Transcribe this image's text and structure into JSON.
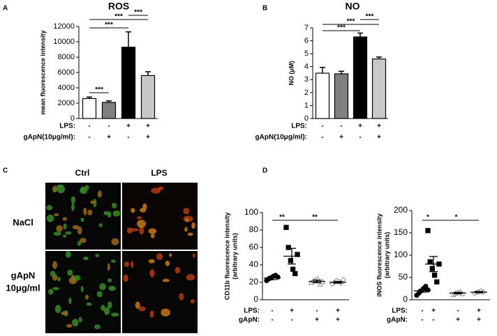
{
  "panel_labels": [
    "A",
    "B",
    "C",
    "D"
  ],
  "chart_data": [
    {
      "type": "bar",
      "title": "ROS",
      "y_label": "mean fluorescence intensity",
      "values": [
        2600,
        2100,
        9300,
        5600
      ],
      "errors": [
        200,
        200,
        2000,
        500
      ],
      "colors": [
        "#ffffff",
        "#808080",
        "#000000",
        "#c8c8c8"
      ],
      "ylim": [
        0,
        12000
      ],
      "yticks": [
        0,
        2000,
        4000,
        6000,
        8000,
        10000,
        12000
      ],
      "significance": [
        "***",
        "***",
        "***",
        "***"
      ],
      "condition_rows": [
        {
          "label": "LPS:",
          "values": [
            "-",
            "-",
            "+",
            "+"
          ]
        },
        {
          "label": "gApN(10μg/ml):",
          "values": [
            "-",
            "+",
            "-",
            "+"
          ]
        }
      ]
    },
    {
      "type": "bar",
      "title": "NO",
      "y_label": "NO (μM)",
      "values": [
        3.5,
        3.45,
        6.3,
        4.6
      ],
      "errors": [
        0.45,
        0.2,
        0.3,
        0.15
      ],
      "colors": [
        "#ffffff",
        "#808080",
        "#000000",
        "#c8c8c8"
      ],
      "ylim": [
        0,
        7
      ],
      "yticks": [
        0,
        1,
        2,
        3,
        4,
        5,
        6,
        7
      ],
      "significance": [
        "***",
        "***",
        "***"
      ],
      "condition_rows": [
        {
          "label": "LPS:",
          "values": [
            "-",
            "-",
            "+",
            "+"
          ]
        },
        {
          "label": "gApN(10μg/ml):",
          "values": [
            "-",
            "+",
            "-",
            "+"
          ]
        }
      ]
    },
    {
      "type": "scatter",
      "y_label": [
        "CD11b fluorescence intensity",
        "(arbitrary units)"
      ],
      "ylim": [
        0,
        100
      ],
      "yticks": [
        0,
        20,
        40,
        60,
        80,
        100
      ],
      "groups": [
        {
          "marker": "circle",
          "filled": true,
          "values": [
            22,
            24,
            25,
            27,
            28,
            26
          ],
          "mean": 25,
          "sem": 2
        },
        {
          "marker": "square",
          "filled": true,
          "values": [
            83,
            60,
            45,
            35,
            30,
            52
          ],
          "mean": 50,
          "sem": 9
        },
        {
          "marker": "triangle",
          "filled": false,
          "values": [
            20,
            22,
            23,
            24,
            18,
            21
          ],
          "mean": 21,
          "sem": 1.5
        },
        {
          "marker": "diamond",
          "filled": false,
          "values": [
            18,
            20,
            22,
            21,
            19,
            23
          ],
          "mean": 20,
          "sem": 1
        }
      ],
      "significance": [
        "**",
        "**"
      ],
      "condition_rows": [
        {
          "label": "LPS:",
          "values": [
            "-",
            "+",
            "-",
            "+"
          ]
        },
        {
          "label": "gApN:",
          "values": [
            "-",
            "-",
            "+",
            "+"
          ]
        }
      ]
    },
    {
      "type": "scatter",
      "y_label": [
        "iNOS fluorescence intensity",
        "(arbitrary units)"
      ],
      "ylim": [
        0,
        200
      ],
      "yticks": [
        0,
        50,
        100,
        150,
        200
      ],
      "groups": [
        {
          "marker": "circle",
          "filled": true,
          "values": [
            10,
            15,
            20,
            25,
            30,
            22
          ],
          "mean": 20,
          "sem": 3
        },
        {
          "marker": "square",
          "filled": true,
          "values": [
            155,
            85,
            70,
            55,
            40,
            80
          ],
          "mean": 80,
          "sem": 17
        },
        {
          "marker": "triangle",
          "filled": false,
          "values": [
            12,
            15,
            17,
            18,
            14
          ],
          "mean": 15,
          "sem": 1.5
        },
        {
          "marker": "diamond",
          "filled": false,
          "values": [
            14,
            16,
            18,
            20,
            17
          ],
          "mean": 17,
          "sem": 1.5
        }
      ],
      "significance": [
        "*",
        "*"
      ],
      "condition_rows": [
        {
          "label": "LPS:",
          "values": [
            "-",
            "+",
            "-",
            "+"
          ]
        },
        {
          "label": "gApN:",
          "values": [
            "-",
            "-",
            "+",
            "+"
          ]
        }
      ]
    }
  ],
  "image_panel": {
    "columns": [
      "Ctrl",
      "LPS"
    ],
    "rows": [
      [
        "NaCl"
      ],
      [
        "gApN",
        "10μg/ml"
      ]
    ]
  }
}
